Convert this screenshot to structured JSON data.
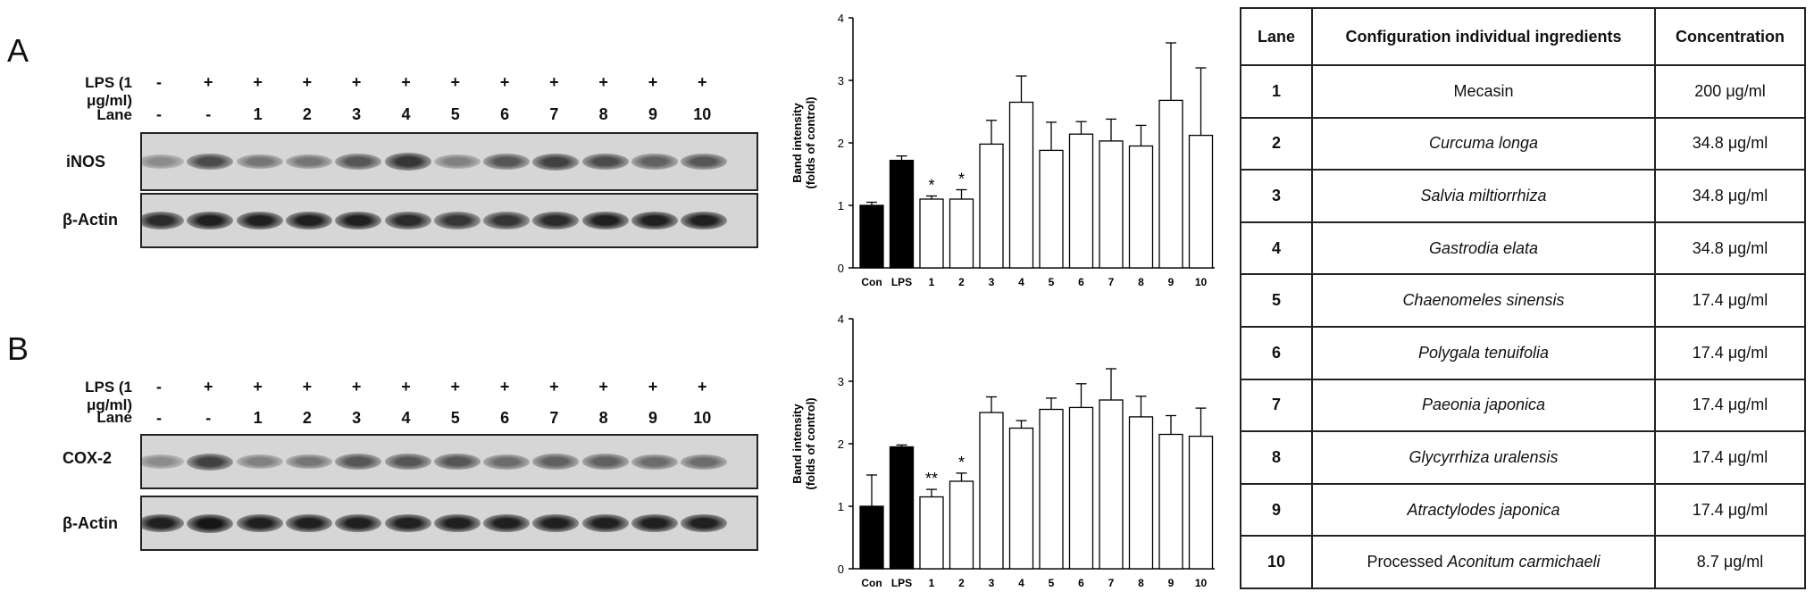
{
  "panelA": {
    "letter": "A",
    "lps_label": "LPS (1 μg/ml)",
    "lane_label": "Lane",
    "lps": [
      "-",
      "+",
      "+",
      "+",
      "+",
      "+",
      "+",
      "+",
      "+",
      "+",
      "+",
      "+"
    ],
    "lanes": [
      "-",
      "-",
      "1",
      "2",
      "3",
      "4",
      "5",
      "6",
      "7",
      "8",
      "9",
      "10"
    ],
    "blot1_label": "iNOS",
    "blot2_label": "β-Actin",
    "blot1_intensity": [
      0.35,
      0.65,
      0.45,
      0.45,
      0.6,
      0.75,
      0.4,
      0.6,
      0.7,
      0.65,
      0.55,
      0.6
    ],
    "blot2_intensity": [
      0.8,
      0.85,
      0.85,
      0.85,
      0.85,
      0.8,
      0.75,
      0.75,
      0.8,
      0.85,
      0.85,
      0.85
    ]
  },
  "panelB": {
    "letter": "B",
    "lps_label": "LPS (1 μg/ml)",
    "lane_label": "Lane",
    "lps": [
      "-",
      "+",
      "+",
      "+",
      "+",
      "+",
      "+",
      "+",
      "+",
      "+",
      "+",
      "+"
    ],
    "lanes": [
      "-",
      "-",
      "1",
      "2",
      "3",
      "4",
      "5",
      "6",
      "7",
      "8",
      "9",
      "10"
    ],
    "blot1_label": "COX-2",
    "blot2_label": "β-Actin",
    "blot1_intensity": [
      0.35,
      0.7,
      0.4,
      0.45,
      0.6,
      0.6,
      0.6,
      0.5,
      0.55,
      0.55,
      0.5,
      0.5
    ],
    "blot2_intensity": [
      0.85,
      0.9,
      0.85,
      0.85,
      0.85,
      0.85,
      0.85,
      0.85,
      0.85,
      0.85,
      0.85,
      0.85
    ]
  },
  "chart_data": [
    {
      "type": "bar",
      "ylabel": "Band intensity (folds of control)",
      "ylabel_lines": [
        "Band intensity",
        "(folds of control)"
      ],
      "categories": [
        "Con",
        "LPS",
        "1",
        "2",
        "3",
        "4",
        "5",
        "6",
        "7",
        "8",
        "9",
        "10"
      ],
      "values": [
        1.0,
        1.72,
        1.1,
        1.1,
        1.98,
        2.65,
        1.88,
        2.14,
        2.03,
        1.95,
        2.68,
        2.12
      ],
      "errors": [
        0.05,
        0.07,
        0.05,
        0.15,
        0.38,
        0.42,
        0.45,
        0.2,
        0.35,
        0.33,
        0.92,
        1.08
      ],
      "fill": [
        "#000",
        "#000",
        "#fff",
        "#fff",
        "#fff",
        "#fff",
        "#fff",
        "#fff",
        "#fff",
        "#fff",
        "#fff",
        "#fff"
      ],
      "significance": [
        "",
        "",
        "*",
        "*",
        "",
        "",
        "",
        "",
        "",
        "",
        "",
        ""
      ],
      "ylim": [
        0,
        4
      ],
      "yticks": [
        "0",
        "1",
        "2",
        "3",
        "4"
      ]
    },
    {
      "type": "bar",
      "ylabel": "Band intensity (folds of control)",
      "ylabel_lines": [
        "Band intensity",
        "(folds of control)"
      ],
      "categories": [
        "Con",
        "LPS",
        "1",
        "2",
        "3",
        "4",
        "5",
        "6",
        "7",
        "8",
        "9",
        "10"
      ],
      "values": [
        1.0,
        1.95,
        1.15,
        1.4,
        2.5,
        2.25,
        2.55,
        2.58,
        2.7,
        2.43,
        2.15,
        2.12
      ],
      "errors": [
        0.5,
        0.03,
        0.12,
        0.13,
        0.25,
        0.12,
        0.18,
        0.38,
        0.5,
        0.33,
        0.3,
        0.45
      ],
      "fill": [
        "#000",
        "#000",
        "#fff",
        "#fff",
        "#fff",
        "#fff",
        "#fff",
        "#fff",
        "#fff",
        "#fff",
        "#fff",
        "#fff"
      ],
      "significance": [
        "",
        "",
        "**",
        "*",
        "",
        "",
        "",
        "",
        "",
        "",
        "",
        ""
      ],
      "ylim": [
        0,
        4
      ],
      "yticks": [
        "0",
        "1",
        "2",
        "3",
        "4"
      ]
    }
  ],
  "table": {
    "headers": [
      "Lane",
      "Configuration individual ingredients",
      "Concentration"
    ],
    "rows": [
      {
        "lane": "1",
        "pre": "",
        "ingredient": "Mecasin",
        "italic": false,
        "conc": "200 μg/ml"
      },
      {
        "lane": "2",
        "pre": "",
        "ingredient": "Curcuma longa",
        "italic": true,
        "conc": "34.8 μg/ml"
      },
      {
        "lane": "3",
        "pre": "",
        "ingredient": "Salvia miltiorrhiza",
        "italic": true,
        "conc": "34.8 μg/ml"
      },
      {
        "lane": "4",
        "pre": "",
        "ingredient": "Gastrodia elata",
        "italic": true,
        "conc": "34.8 μg/ml"
      },
      {
        "lane": "5",
        "pre": "",
        "ingredient": "Chaenomeles sinensis",
        "italic": true,
        "conc": "17.4 μg/ml"
      },
      {
        "lane": "6",
        "pre": "",
        "ingredient": "Polygala tenuifolia",
        "italic": true,
        "conc": "17.4 μg/ml"
      },
      {
        "lane": "7",
        "pre": "",
        "ingredient": "Paeonia japonica",
        "italic": true,
        "conc": "17.4 μg/ml"
      },
      {
        "lane": "8",
        "pre": "",
        "ingredient": "Glycyrrhiza uralensis",
        "italic": true,
        "conc": "17.4 μg/ml"
      },
      {
        "lane": "9",
        "pre": "",
        "ingredient": "Atractylodes japonica",
        "italic": true,
        "conc": "17.4 μg/ml"
      },
      {
        "lane": "10",
        "pre": "Processed ",
        "ingredient": "Aconitum carmichaeli",
        "italic": true,
        "conc": "8.7 μg/ml"
      }
    ]
  }
}
